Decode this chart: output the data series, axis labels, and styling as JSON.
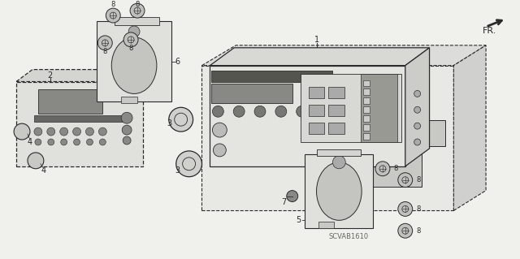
{
  "bg_color": "#f0f0ec",
  "line_color": "#2a2a2a",
  "code": "SCVAB1610",
  "fr_text": "FR."
}
